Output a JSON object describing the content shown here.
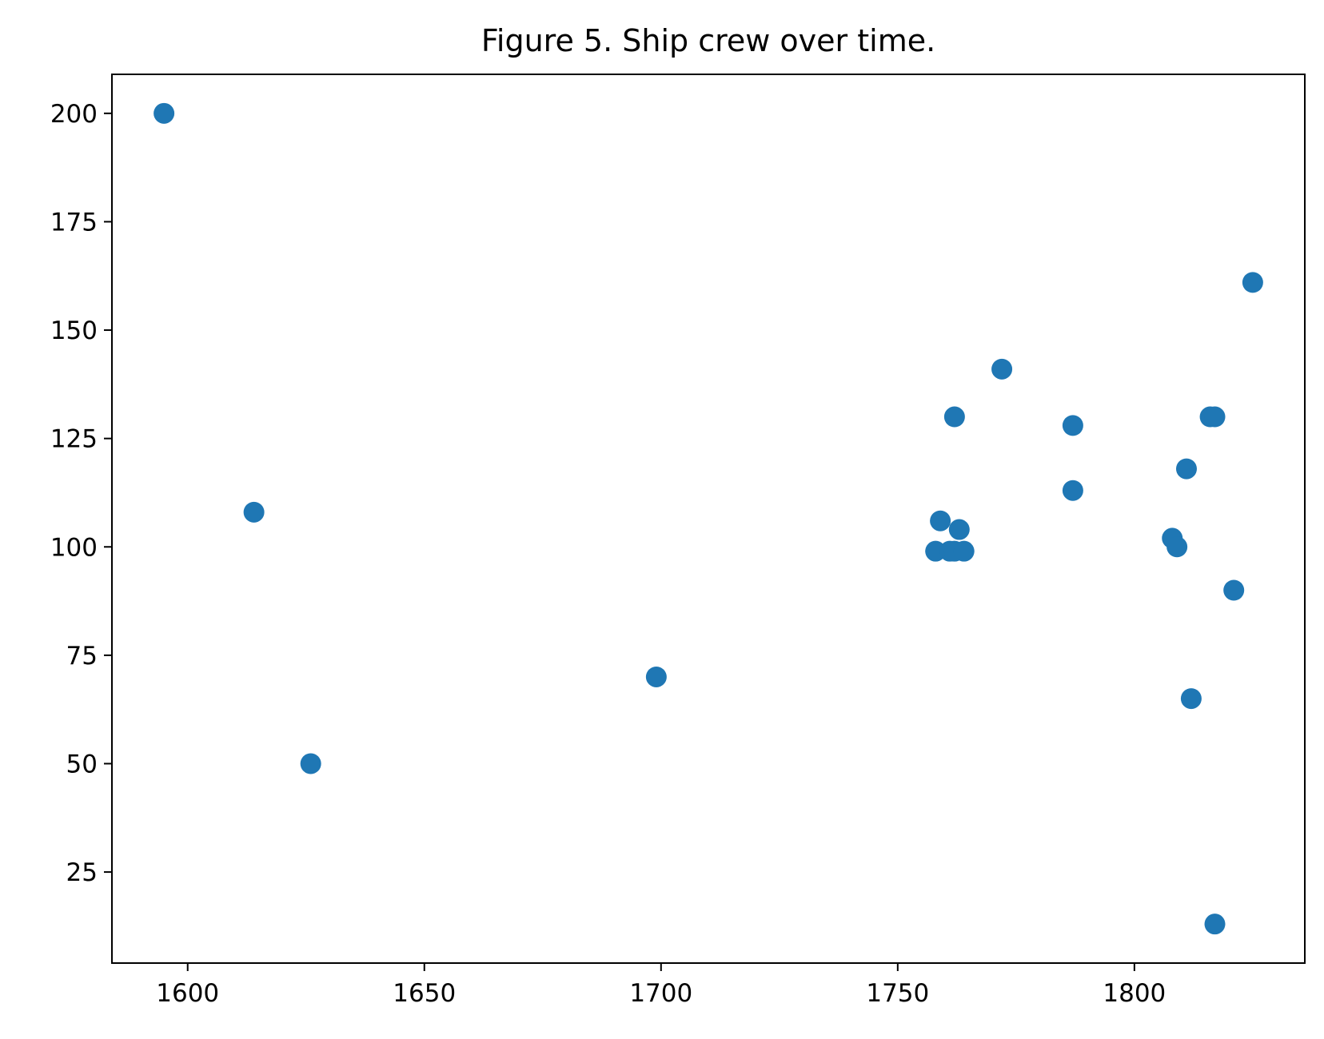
{
  "chart_data": {
    "type": "scatter",
    "title": "Figure 5. Ship crew over time.",
    "xlabel": "",
    "ylabel": "",
    "xlim": [
      1584,
      1836
    ],
    "ylim": [
      4,
      209
    ],
    "xticks": [
      1600,
      1650,
      1700,
      1750,
      1800
    ],
    "yticks": [
      25,
      50,
      75,
      100,
      125,
      150,
      175,
      200
    ],
    "grid": false,
    "marker_color": "#1f77b4",
    "points": [
      {
        "x": 1595,
        "y": 200
      },
      {
        "x": 1614,
        "y": 108
      },
      {
        "x": 1626,
        "y": 50
      },
      {
        "x": 1699,
        "y": 70
      },
      {
        "x": 1758,
        "y": 99
      },
      {
        "x": 1759,
        "y": 106
      },
      {
        "x": 1761,
        "y": 99
      },
      {
        "x": 1762,
        "y": 99
      },
      {
        "x": 1762,
        "y": 130
      },
      {
        "x": 1763,
        "y": 104
      },
      {
        "x": 1764,
        "y": 99
      },
      {
        "x": 1772,
        "y": 141
      },
      {
        "x": 1787,
        "y": 128
      },
      {
        "x": 1787,
        "y": 113
      },
      {
        "x": 1808,
        "y": 102
      },
      {
        "x": 1809,
        "y": 100
      },
      {
        "x": 1811,
        "y": 118
      },
      {
        "x": 1812,
        "y": 65
      },
      {
        "x": 1816,
        "y": 130
      },
      {
        "x": 1817,
        "y": 130
      },
      {
        "x": 1817,
        "y": 13
      },
      {
        "x": 1821,
        "y": 90
      },
      {
        "x": 1825,
        "y": 161
      }
    ]
  }
}
